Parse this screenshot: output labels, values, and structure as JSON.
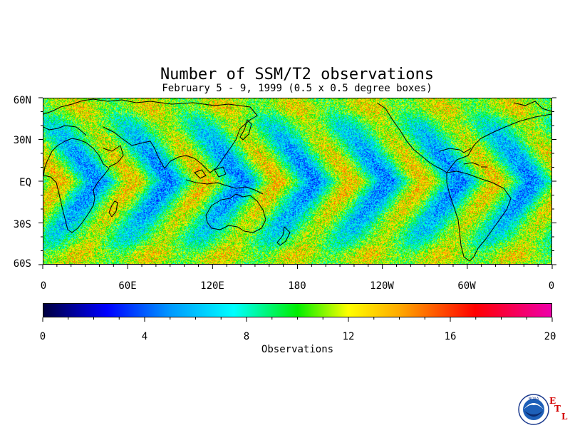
{
  "title": "Number of SSM/T2 observations",
  "subtitle": "February 5 - 9, 1999 (0.5 x 0.5 degree boxes)",
  "y_ticks": [
    "60N",
    "30N",
    "EQ",
    "30S",
    "60S"
  ],
  "x_ticks": [
    "0",
    "60E",
    "120E",
    "180",
    "120W",
    "60W",
    "0"
  ],
  "colorbar": {
    "ticks": [
      "0",
      "4",
      "8",
      "12",
      "16",
      "20"
    ],
    "label": "Observations",
    "range": [
      0,
      20
    ],
    "stops": [
      {
        "value": 0,
        "color": "#000040"
      },
      {
        "value": 2.5,
        "color": "#0000ff"
      },
      {
        "value": 5,
        "color": "#0099ff"
      },
      {
        "value": 7.5,
        "color": "#00ffff"
      },
      {
        "value": 10,
        "color": "#00ee00"
      },
      {
        "value": 12,
        "color": "#ffff00"
      },
      {
        "value": 14,
        "color": "#ffaa00"
      },
      {
        "value": 17,
        "color": "#ff0000"
      },
      {
        "value": 20,
        "color": "#ee00aa"
      }
    ]
  },
  "chart_data": {
    "type": "heatmap",
    "title": "Number of SSM/T2 observations",
    "subtitle": "February 5 - 9, 1999 (0.5 x 0.5 degree boxes)",
    "x_range": [
      0,
      360
    ],
    "y_range": [
      -60,
      60
    ],
    "value_range": [
      0,
      20
    ],
    "colorbar_label": "Observations"
  },
  "logo": {
    "name": "noaa-logo",
    "text": "NOAA"
  },
  "etl": [
    "E",
    "T",
    "L"
  ]
}
